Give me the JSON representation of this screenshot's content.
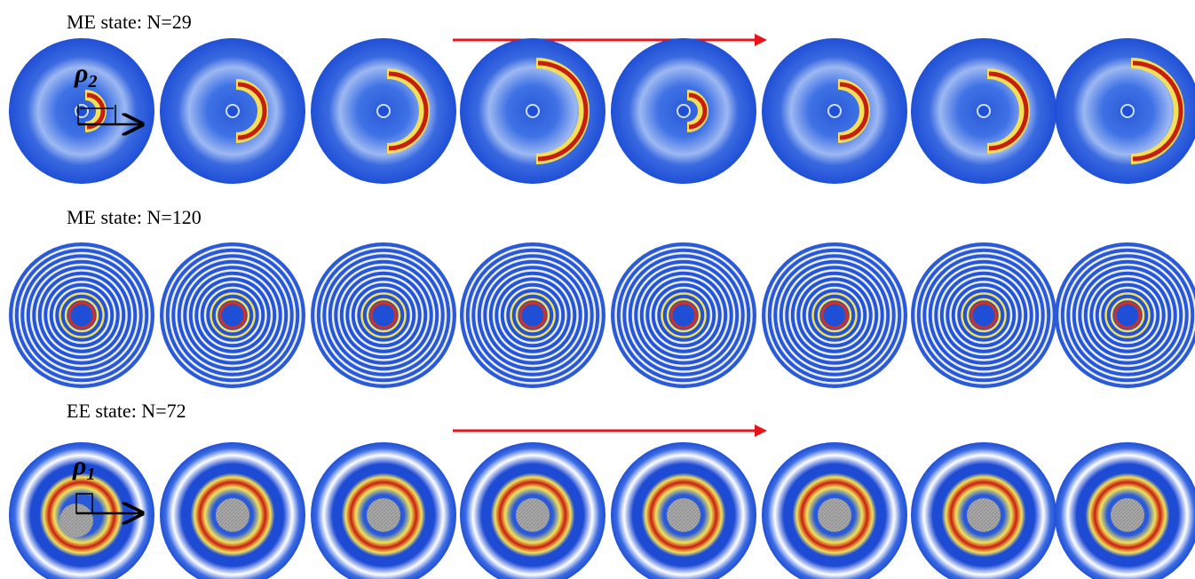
{
  "rows": [
    {
      "label": "ME state:   N=29",
      "symbol": "ρ",
      "subscript": "2"
    },
    {
      "label": "ME state:   N=120"
    },
    {
      "label": "EE state:   N=72",
      "symbol": "ρ",
      "subscript": "1"
    }
  ]
}
